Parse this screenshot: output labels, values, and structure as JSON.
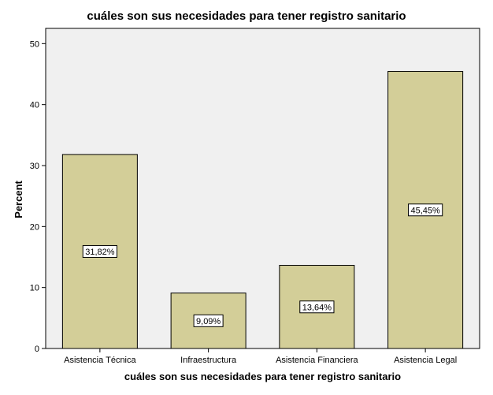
{
  "chart_data": {
    "type": "bar",
    "title": "cuáles son sus necesidades para tener registro sanitario",
    "xlabel": "cuáles son sus necesidades para tener registro sanitario",
    "ylabel": "Percent",
    "categories": [
      "Asistencia Técnica",
      "Infraestructura",
      "Asistencia Financiera",
      "Asistencia Legal"
    ],
    "values": [
      31.82,
      9.09,
      13.64,
      45.45
    ],
    "data_labels": [
      "31,82%",
      "9,09%",
      "13,64%",
      "45,45%"
    ],
    "ylim": [
      0,
      52.5
    ],
    "yticks": [
      0,
      10,
      20,
      30,
      40,
      50
    ],
    "grid": false,
    "legend": "none",
    "colors": {
      "bar_fill": "#d3ce98",
      "bar_stroke": "#000000",
      "plot_background": "#f0f0f0",
      "label_box": "#ffffff"
    }
  }
}
